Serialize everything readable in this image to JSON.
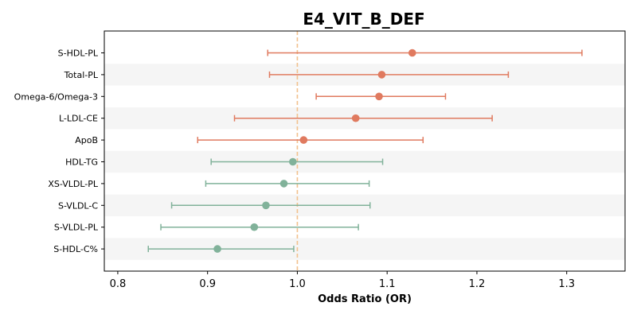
{
  "chart_data": {
    "type": "forest",
    "title": "E4_VIT_B_DEF",
    "xlabel": "Odds Ratio (OR)",
    "ylabel": "",
    "xlim": [
      0.785,
      1.365
    ],
    "xticks": [
      0.8,
      0.9,
      1.0,
      1.1,
      1.2,
      1.3
    ],
    "xtick_labels": [
      "0.8",
      "0.9",
      "1.0",
      "1.1",
      "1.2",
      "1.3"
    ],
    "reference_line": 1.0,
    "reference_line_style": "dashed",
    "grid": false,
    "alternating_row_bands": true,
    "colors": {
      "above_one": "#e07a5f",
      "below_one": "#81b29a",
      "reference_line": "#f2c18d",
      "band": "#f5f5f5"
    },
    "rows": [
      {
        "label": "S-HDL-PL",
        "or": 1.128,
        "lower": 0.967,
        "upper": 1.317
      },
      {
        "label": "Total-PL",
        "or": 1.094,
        "lower": 0.969,
        "upper": 1.235
      },
      {
        "label": "Omega-6/Omega-3",
        "or": 1.091,
        "lower": 1.021,
        "upper": 1.165
      },
      {
        "label": "L-LDL-CE",
        "or": 1.065,
        "lower": 0.93,
        "upper": 1.217
      },
      {
        "label": "ApoB",
        "or": 1.007,
        "lower": 0.889,
        "upper": 1.14
      },
      {
        "label": "HDL-TG",
        "or": 0.995,
        "lower": 0.904,
        "upper": 1.095
      },
      {
        "label": "XS-VLDL-PL",
        "or": 0.985,
        "lower": 0.898,
        "upper": 1.08
      },
      {
        "label": "S-VLDL-C",
        "or": 0.965,
        "lower": 0.86,
        "upper": 1.081
      },
      {
        "label": "S-VLDL-PL",
        "or": 0.952,
        "lower": 0.848,
        "upper": 1.068
      },
      {
        "label": "S-HDL-C%",
        "or": 0.911,
        "lower": 0.834,
        "upper": 0.996
      }
    ]
  }
}
